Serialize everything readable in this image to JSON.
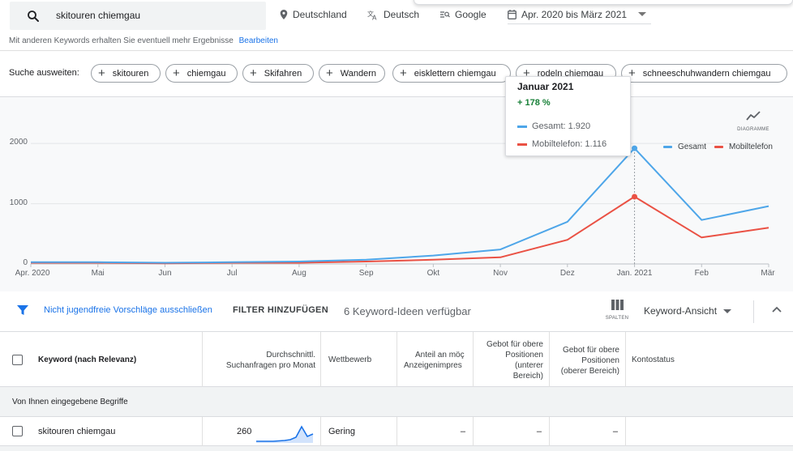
{
  "search": {
    "value": "skitouren chiemgau"
  },
  "filters": {
    "location": "Deutschland",
    "language": "Deutsch",
    "network": "Google",
    "date_range": "Apr. 2020 bis März 2021"
  },
  "hint": {
    "text": "Mit anderen Keywords erhalten Sie eventuell mehr Ergebnisse",
    "link": "Bearbeiten"
  },
  "expand": {
    "label": "Suche ausweiten:",
    "chips": [
      "skitouren",
      "chiemgau",
      "Skifahren",
      "Wandern",
      "eisklettern chiemgau",
      "rodeln chiemgau",
      "schneeschuhwandern chiemgau"
    ]
  },
  "chart_toggle": {
    "label": "DIAGRAMME",
    "icon": "trending-chart-icon"
  },
  "legend": [
    {
      "name": "Gesamt",
      "color": "#4ea6e9"
    },
    {
      "name": "Mobiltelefon",
      "color": "#ea5144"
    }
  ],
  "tooltip": {
    "title": "Januar 2021",
    "change": "+ 178 %",
    "rows": [
      "Gesamt: 1.920",
      "Mobiltelefon: 1.116"
    ]
  },
  "chart_data": {
    "type": "line",
    "categories": [
      "Apr. 2020",
      "Mai",
      "Jun",
      "Jul",
      "Aug",
      "Sep",
      "Okt",
      "Nov",
      "Dez",
      "Jan. 2021",
      "Feb",
      "Mär"
    ],
    "series": [
      {
        "name": "Gesamt",
        "values": [
          30,
          30,
          20,
          30,
          40,
          70,
          140,
          240,
          700,
          1920,
          730,
          960
        ]
      },
      {
        "name": "Mobiltelefon",
        "values": [
          20,
          20,
          10,
          20,
          20,
          40,
          70,
          110,
          400,
          1116,
          440,
          600
        ]
      }
    ],
    "y_ticks": [
      0,
      1000,
      2000
    ],
    "ylim": [
      0,
      2150
    ],
    "highlight_index": 9,
    "grid": true,
    "legend_position": "top-right"
  },
  "filter_bar": {
    "link": "Nicht jugendfreie Vorschläge ausschließen",
    "add_filter": "FILTER HINZUFÜGEN",
    "count": "6 Keyword-Ideen verfügbar",
    "columns_label": "SPALTEN",
    "view": "Keyword-Ansicht"
  },
  "table": {
    "headers": {
      "keyword": "Keyword (nach Relevanz)",
      "avg_searches_1": "Durchschnittl.",
      "avg_searches_2": "Suchanfragen pro Monat",
      "competition": "Wettbewerb",
      "impr_share_1": "Anteil an möç",
      "impr_share_2": "Anzeigenimpres",
      "bid_low_1": "Gebot für obere",
      "bid_low_2": "Positionen",
      "bid_low_3": "(unterer",
      "bid_low_4": "Bereich)",
      "bid_high_1": "Gebot für obere",
      "bid_high_2": "Positionen",
      "bid_high_3": "(oberer Bereich)",
      "status": "Kontostatus"
    },
    "group_label": "Von Ihnen eingegebene Begriffe",
    "rows": [
      {
        "keyword": "skitouren chiemgau",
        "searches": "260",
        "competition": "Gering",
        "impr_share": "–",
        "bid_low": "–",
        "bid_high": "–",
        "status": ""
      }
    ]
  }
}
